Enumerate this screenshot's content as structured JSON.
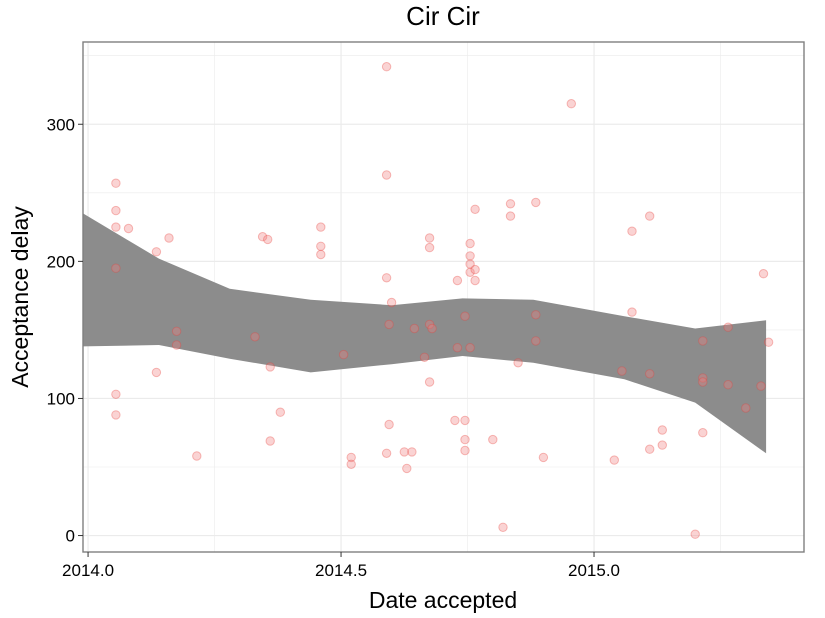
{
  "chart_data": {
    "type": "scatter",
    "title": "Cir Cir",
    "xlabel": "Date accepted",
    "ylabel": "Acceptance delay",
    "xlim": [
      2013.99,
      2015.415
    ],
    "ylim": [
      -12,
      360
    ],
    "x_ticks": [
      2014.0,
      2014.5,
      2015.0
    ],
    "x_tick_labels": [
      "2014.0",
      "2014.5",
      "2015.0"
    ],
    "y_ticks": [
      0,
      100,
      200,
      300
    ],
    "y_tick_labels": [
      "0",
      "100",
      "200",
      "300"
    ],
    "grid": true,
    "legend": "none",
    "colors": {
      "points": "#f08080",
      "band": "#8c8c8c",
      "grid": "#ebebeb",
      "border": "#7f7f7f"
    },
    "series": [
      {
        "type": "scatter",
        "points": [
          [
            2014.055,
            257
          ],
          [
            2014.055,
            237
          ],
          [
            2014.055,
            225
          ],
          [
            2014.055,
            195
          ],
          [
            2014.055,
            103
          ],
          [
            2014.055,
            88
          ],
          [
            2014.08,
            224
          ],
          [
            2014.135,
            207
          ],
          [
            2014.135,
            119
          ],
          [
            2014.16,
            217
          ],
          [
            2014.175,
            149
          ],
          [
            2014.175,
            139
          ],
          [
            2014.215,
            58
          ],
          [
            2014.33,
            145
          ],
          [
            2014.345,
            218
          ],
          [
            2014.355,
            216
          ],
          [
            2014.36,
            123
          ],
          [
            2014.36,
            69
          ],
          [
            2014.38,
            90
          ],
          [
            2014.46,
            225
          ],
          [
            2014.46,
            211
          ],
          [
            2014.46,
            205
          ],
          [
            2014.505,
            132
          ],
          [
            2014.52,
            57
          ],
          [
            2014.52,
            52
          ],
          [
            2014.59,
            342
          ],
          [
            2014.59,
            263
          ],
          [
            2014.59,
            188
          ],
          [
            2014.595,
            154
          ],
          [
            2014.595,
            81
          ],
          [
            2014.59,
            60
          ],
          [
            2014.6,
            170
          ],
          [
            2014.625,
            61
          ],
          [
            2014.63,
            49
          ],
          [
            2014.64,
            61
          ],
          [
            2014.645,
            151
          ],
          [
            2014.665,
            130
          ],
          [
            2014.675,
            217
          ],
          [
            2014.675,
            210
          ],
          [
            2014.675,
            154
          ],
          [
            2014.675,
            112
          ],
          [
            2014.68,
            151
          ],
          [
            2014.725,
            84
          ],
          [
            2014.73,
            186
          ],
          [
            2014.73,
            137
          ],
          [
            2014.745,
            160
          ],
          [
            2014.745,
            84
          ],
          [
            2014.745,
            70
          ],
          [
            2014.745,
            62
          ],
          [
            2014.755,
            213
          ],
          [
            2014.755,
            204
          ],
          [
            2014.755,
            198
          ],
          [
            2014.755,
            192
          ],
          [
            2014.755,
            137
          ],
          [
            2014.765,
            238
          ],
          [
            2014.765,
            194
          ],
          [
            2014.765,
            186
          ],
          [
            2014.8,
            70
          ],
          [
            2014.82,
            6
          ],
          [
            2014.835,
            242
          ],
          [
            2014.835,
            233
          ],
          [
            2014.85,
            126
          ],
          [
            2014.885,
            243
          ],
          [
            2014.885,
            161
          ],
          [
            2014.885,
            142
          ],
          [
            2014.9,
            57
          ],
          [
            2014.955,
            315
          ],
          [
            2015.04,
            55
          ],
          [
            2015.055,
            120
          ],
          [
            2015.075,
            222
          ],
          [
            2015.075,
            163
          ],
          [
            2015.11,
            233
          ],
          [
            2015.11,
            118
          ],
          [
            2015.11,
            63
          ],
          [
            2015.135,
            77
          ],
          [
            2015.135,
            66
          ],
          [
            2015.2,
            1
          ],
          [
            2015.215,
            142
          ],
          [
            2015.215,
            115
          ],
          [
            2015.215,
            112
          ],
          [
            2015.215,
            75
          ],
          [
            2015.265,
            152
          ],
          [
            2015.265,
            110
          ],
          [
            2015.3,
            93
          ],
          [
            2015.33,
            109
          ],
          [
            2015.335,
            191
          ],
          [
            2015.345,
            141
          ]
        ]
      },
      {
        "type": "ribbon",
        "x": [
          2013.99,
          2014.14,
          2014.28,
          2014.44,
          2014.6,
          2014.74,
          2014.88,
          2015.06,
          2015.2,
          2015.34
        ],
        "upper": [
          235,
          202,
          180,
          172,
          168,
          173,
          172,
          160,
          151,
          157
        ],
        "lower": [
          138,
          139,
          129,
          119,
          125,
          131,
          126,
          114,
          97,
          60
        ]
      }
    ]
  }
}
